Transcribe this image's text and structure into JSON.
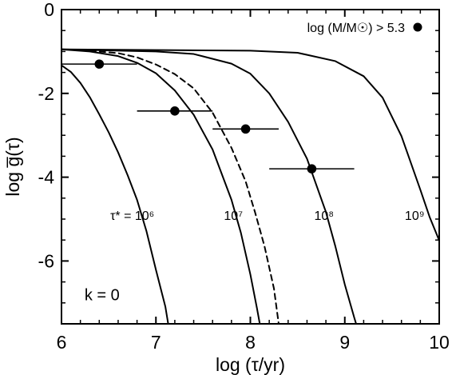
{
  "chart_data": {
    "type": "line",
    "xlabel": "log (τ/yr)",
    "ylabel": "log g̅(τ)",
    "xlim": [
      6,
      10
    ],
    "ylim": [
      -7.5,
      0
    ],
    "x_ticks": [
      6,
      7,
      8,
      9,
      10
    ],
    "x_tick_labels": [
      "6",
      "7",
      "8",
      "9",
      "10"
    ],
    "y_ticks": [
      0,
      -2,
      -4,
      -6
    ],
    "y_tick_labels": [
      "0",
      "-2",
      "-4",
      "-6"
    ],
    "grid": false,
    "legend": {
      "label": "log (M/M☉) > 5.3",
      "marker": "filled-circle",
      "placement": "top-right"
    },
    "annotations": [
      {
        "text": "k = 0",
        "x": 6.43,
        "y": -6.8
      }
    ],
    "series": [
      {
        "name": "τ* = 10⁶",
        "style": "solid",
        "label_x": 6.75,
        "label_y": -4.9,
        "points": [
          [
            6.0,
            -1.33
          ],
          [
            6.1,
            -1.49
          ],
          [
            6.2,
            -1.75
          ],
          [
            6.3,
            -2.09
          ],
          [
            6.4,
            -2.5
          ],
          [
            6.5,
            -2.93
          ],
          [
            6.6,
            -3.41
          ],
          [
            6.7,
            -3.95
          ],
          [
            6.8,
            -4.54
          ],
          [
            6.9,
            -5.29
          ],
          [
            7.0,
            -6.21
          ],
          [
            7.1,
            -7.09
          ],
          [
            7.13,
            -7.5
          ]
        ]
      },
      {
        "name": "10⁷",
        "style": "solid",
        "label_x": 7.82,
        "label_y": -4.9,
        "points": [
          [
            6.0,
            -0.95
          ],
          [
            6.3,
            -1.0
          ],
          [
            6.6,
            -1.11
          ],
          [
            6.8,
            -1.27
          ],
          [
            7.0,
            -1.52
          ],
          [
            7.2,
            -1.93
          ],
          [
            7.4,
            -2.51
          ],
          [
            7.6,
            -3.34
          ],
          [
            7.8,
            -4.54
          ],
          [
            7.9,
            -5.33
          ],
          [
            8.0,
            -6.32
          ],
          [
            8.07,
            -7.13
          ],
          [
            8.1,
            -7.5
          ]
        ]
      },
      {
        "name": "",
        "style": "dashed",
        "points": [
          [
            6.0,
            -0.95
          ],
          [
            6.3,
            -0.98
          ],
          [
            6.6,
            -1.04
          ],
          [
            6.8,
            -1.14
          ],
          [
            7.0,
            -1.31
          ],
          [
            7.2,
            -1.54
          ],
          [
            7.4,
            -1.88
          ],
          [
            7.6,
            -2.46
          ],
          [
            7.8,
            -3.3
          ],
          [
            7.95,
            -4.1
          ],
          [
            8.05,
            -4.84
          ],
          [
            8.15,
            -5.65
          ],
          [
            8.25,
            -6.66
          ],
          [
            8.3,
            -7.5
          ]
        ]
      },
      {
        "name": "10⁸",
        "style": "solid",
        "label_x": 8.78,
        "label_y": -4.9,
        "points": [
          [
            6.0,
            -0.95
          ],
          [
            7.0,
            -1.0
          ],
          [
            7.4,
            -1.06
          ],
          [
            7.8,
            -1.29
          ],
          [
            8.0,
            -1.53
          ],
          [
            8.2,
            -2.0
          ],
          [
            8.4,
            -2.68
          ],
          [
            8.6,
            -3.56
          ],
          [
            8.8,
            -4.83
          ],
          [
            8.9,
            -5.65
          ],
          [
            9.0,
            -6.56
          ],
          [
            9.1,
            -7.35
          ],
          [
            9.12,
            -7.5
          ]
        ]
      },
      {
        "name": "10⁹",
        "style": "solid",
        "label_x": 9.74,
        "label_y": -4.9,
        "points": [
          [
            6.0,
            -0.95
          ],
          [
            8.0,
            -0.98
          ],
          [
            8.5,
            -1.03
          ],
          [
            8.9,
            -1.23
          ],
          [
            9.2,
            -1.59
          ],
          [
            9.4,
            -2.1
          ],
          [
            9.6,
            -3.02
          ],
          [
            9.8,
            -4.3
          ],
          [
            9.9,
            -4.96
          ],
          [
            10.0,
            -5.51
          ]
        ]
      }
    ],
    "data_points": [
      {
        "x": 6.4,
        "y": -1.3,
        "xerr_low": 6.0,
        "xerr_high": 6.8
      },
      {
        "x": 7.2,
        "y": -2.42,
        "xerr_low": 6.8,
        "xerr_high": 7.6
      },
      {
        "x": 7.95,
        "y": -2.85,
        "xerr_low": 7.6,
        "xerr_high": 8.3
      },
      {
        "x": 8.65,
        "y": -3.8,
        "xerr_low": 8.2,
        "xerr_high": 9.1
      }
    ]
  }
}
